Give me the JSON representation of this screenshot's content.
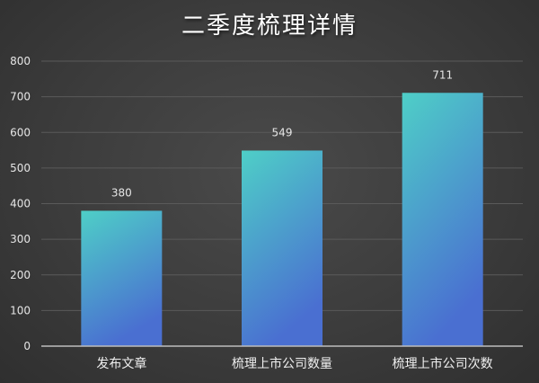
{
  "chart_data": {
    "type": "bar",
    "title": "二季度梳理详情",
    "categories": [
      "发布文章",
      "梳理上市公司数量",
      "梳理上市公司次数"
    ],
    "values": [
      380,
      549,
      711
    ],
    "data_labels": [
      "380",
      "549",
      "711"
    ],
    "ylim": [
      0,
      800
    ],
    "yticks": [
      0,
      100,
      200,
      300,
      400,
      500,
      600,
      700,
      800
    ],
    "ytick_labels": [
      "0",
      "100",
      "200",
      "300",
      "400",
      "500",
      "600",
      "700",
      "800"
    ],
    "grid": true,
    "xlabel": "",
    "ylabel": "",
    "colors": {
      "bar_top": "#4ecfc7",
      "bar_bottom": "#4a6fd1",
      "grid": "#5a5a5a",
      "axis": "#bdbdbd",
      "text": "#e6e6e6"
    }
  }
}
